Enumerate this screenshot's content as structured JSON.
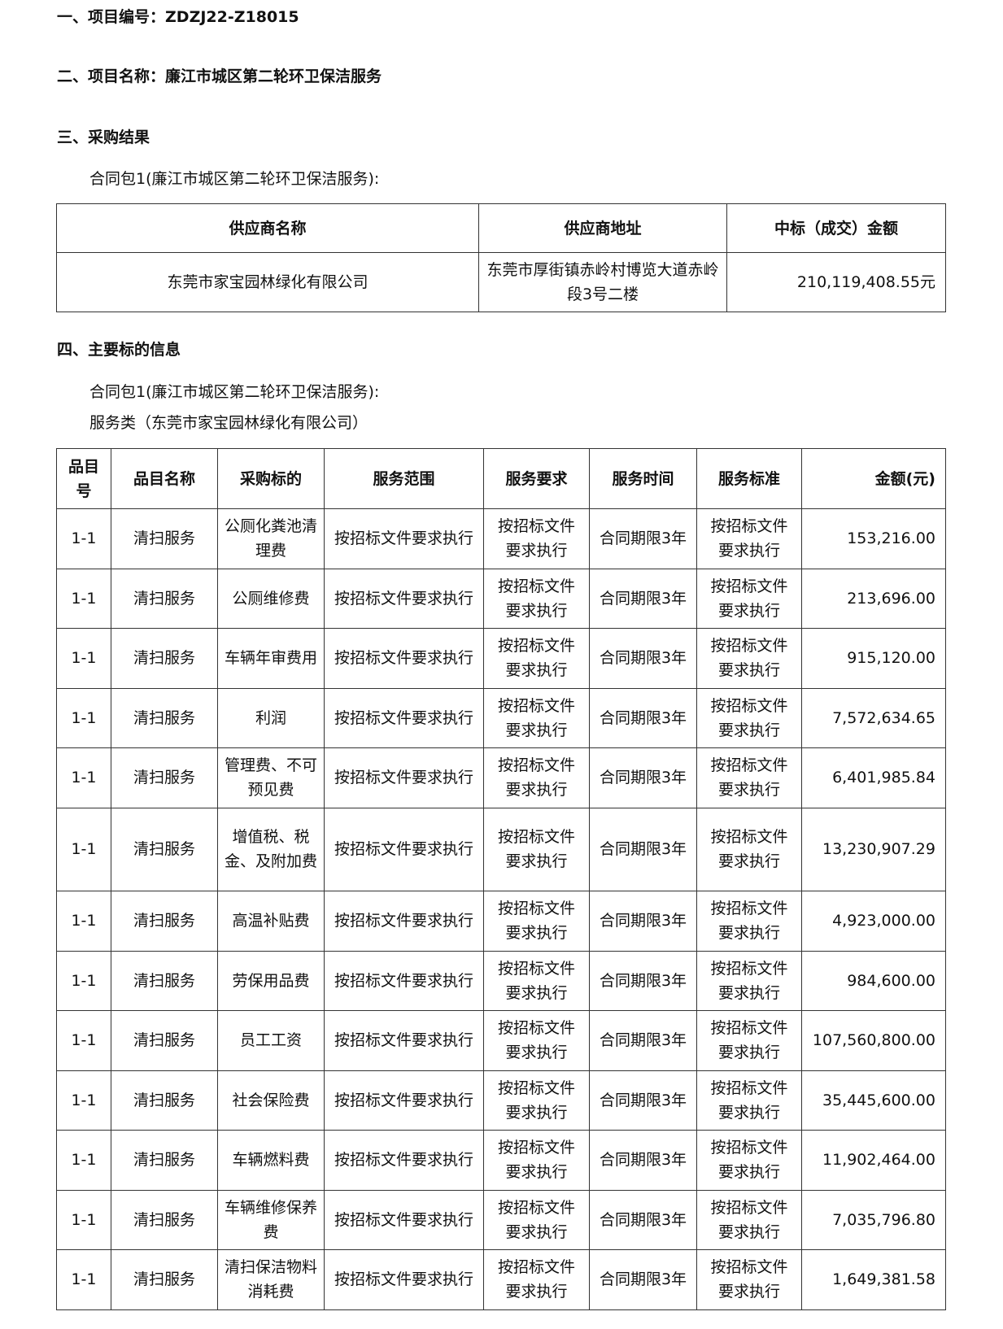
{
  "section1": {
    "label": "一、项目编号：",
    "value": "ZDZJ22-Z18015"
  },
  "section2": {
    "label": "二、项目名称：",
    "value": "廉江市城区第二轮环卫保洁服务"
  },
  "section3": {
    "label": "三、采购结果",
    "package": "合同包1(廉江市城区第二轮环卫保洁服务):",
    "table": {
      "headers": [
        "供应商名称",
        "供应商地址",
        "中标（成交）金额"
      ],
      "row": {
        "name": "东莞市家宝园林绿化有限公司",
        "address": "东莞市厚街镇赤岭村博览大道赤岭段3号二楼",
        "amount": "210,119,408.55元"
      }
    }
  },
  "section4": {
    "label": "四、主要标的信息",
    "package": "合同包1(廉江市城区第二轮环卫保洁服务):",
    "category": "服务类（东莞市家宝园林绿化有限公司）",
    "headers": [
      "品目号",
      "品目名称",
      "采购标的",
      "服务范围",
      "服务要求",
      "服务时间",
      "服务标准",
      "金额(元)"
    ],
    "rows": [
      [
        "1-1",
        "清扫服务",
        "公厕化粪池清理费",
        "按招标文件要求执行",
        "按招标文件要求执行",
        "合同期限3年",
        "按招标文件要求执行",
        "153,216.00"
      ],
      [
        "1-1",
        "清扫服务",
        "公厕维修费",
        "按招标文件要求执行",
        "按招标文件要求执行",
        "合同期限3年",
        "按招标文件要求执行",
        "213,696.00"
      ],
      [
        "1-1",
        "清扫服务",
        "车辆年审费用",
        "按招标文件要求执行",
        "按招标文件要求执行",
        "合同期限3年",
        "按招标文件要求执行",
        "915,120.00"
      ],
      [
        "1-1",
        "清扫服务",
        "利润",
        "按招标文件要求执行",
        "按招标文件要求执行",
        "合同期限3年",
        "按招标文件要求执行",
        "7,572,634.65"
      ],
      [
        "1-1",
        "清扫服务",
        "管理费、不可预见费",
        "按招标文件要求执行",
        "按招标文件要求执行",
        "合同期限3年",
        "按招标文件要求执行",
        "6,401,985.84"
      ],
      [
        "1-1",
        "清扫服务",
        "增值税、税金、及附加费",
        "按招标文件要求执行",
        "按招标文件要求执行",
        "合同期限3年",
        "按招标文件要求执行",
        "13,230,907.29"
      ],
      [
        "1-1",
        "清扫服务",
        "高温补贴费",
        "按招标文件要求执行",
        "按招标文件要求执行",
        "合同期限3年",
        "按招标文件要求执行",
        "4,923,000.00"
      ],
      [
        "1-1",
        "清扫服务",
        "劳保用品费",
        "按招标文件要求执行",
        "按招标文件要求执行",
        "合同期限3年",
        "按招标文件要求执行",
        "984,600.00"
      ],
      [
        "1-1",
        "清扫服务",
        "员工工资",
        "按招标文件要求执行",
        "按招标文件要求执行",
        "合同期限3年",
        "按招标文件要求执行",
        "107,560,800.00"
      ],
      [
        "1-1",
        "清扫服务",
        "社会保险费",
        "按招标文件要求执行",
        "按招标文件要求执行",
        "合同期限3年",
        "按招标文件要求执行",
        "35,445,600.00"
      ],
      [
        "1-1",
        "清扫服务",
        "车辆燃料费",
        "按招标文件要求执行",
        "按招标文件要求执行",
        "合同期限3年",
        "按招标文件要求执行",
        "11,902,464.00"
      ],
      [
        "1-1",
        "清扫服务",
        "车辆维修保养费",
        "按招标文件要求执行",
        "按招标文件要求执行",
        "合同期限3年",
        "按招标文件要求执行",
        "7,035,796.80"
      ],
      [
        "1-1",
        "清扫服务",
        "清扫保洁物料消耗费",
        "按招标文件要求执行",
        "按招标文件要求执行",
        "合同期限3年",
        "按招标文件要求执行",
        "1,649,381.58"
      ]
    ]
  }
}
